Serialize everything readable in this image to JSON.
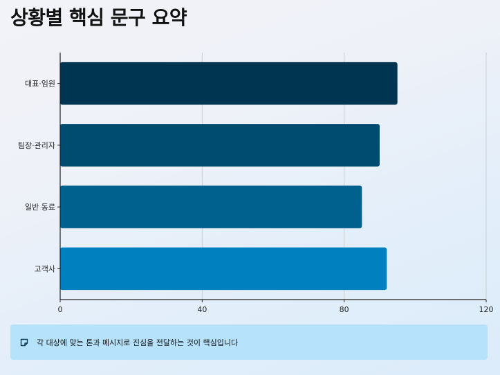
{
  "title": "상황별 핵심 문구 요약",
  "note": {
    "icon": "memo-icon",
    "text": "각 대상에 맞는 톤과 메시지로 진심을 전달하는 것이 핵심입니다"
  },
  "chart_data": {
    "type": "bar",
    "orientation": "horizontal",
    "categories": [
      "대표·임원",
      "팀장·관리자",
      "일반 동료",
      "고객사"
    ],
    "values": [
      95,
      90,
      85,
      92
    ],
    "colors": [
      "#003552",
      "#004b70",
      "#00618f",
      "#0080bf"
    ],
    "xlim": [
      0,
      120
    ],
    "xticks": [
      "0",
      "40",
      "80",
      "120"
    ],
    "xtick_values": [
      0,
      40,
      80,
      120
    ],
    "grid": true
  }
}
